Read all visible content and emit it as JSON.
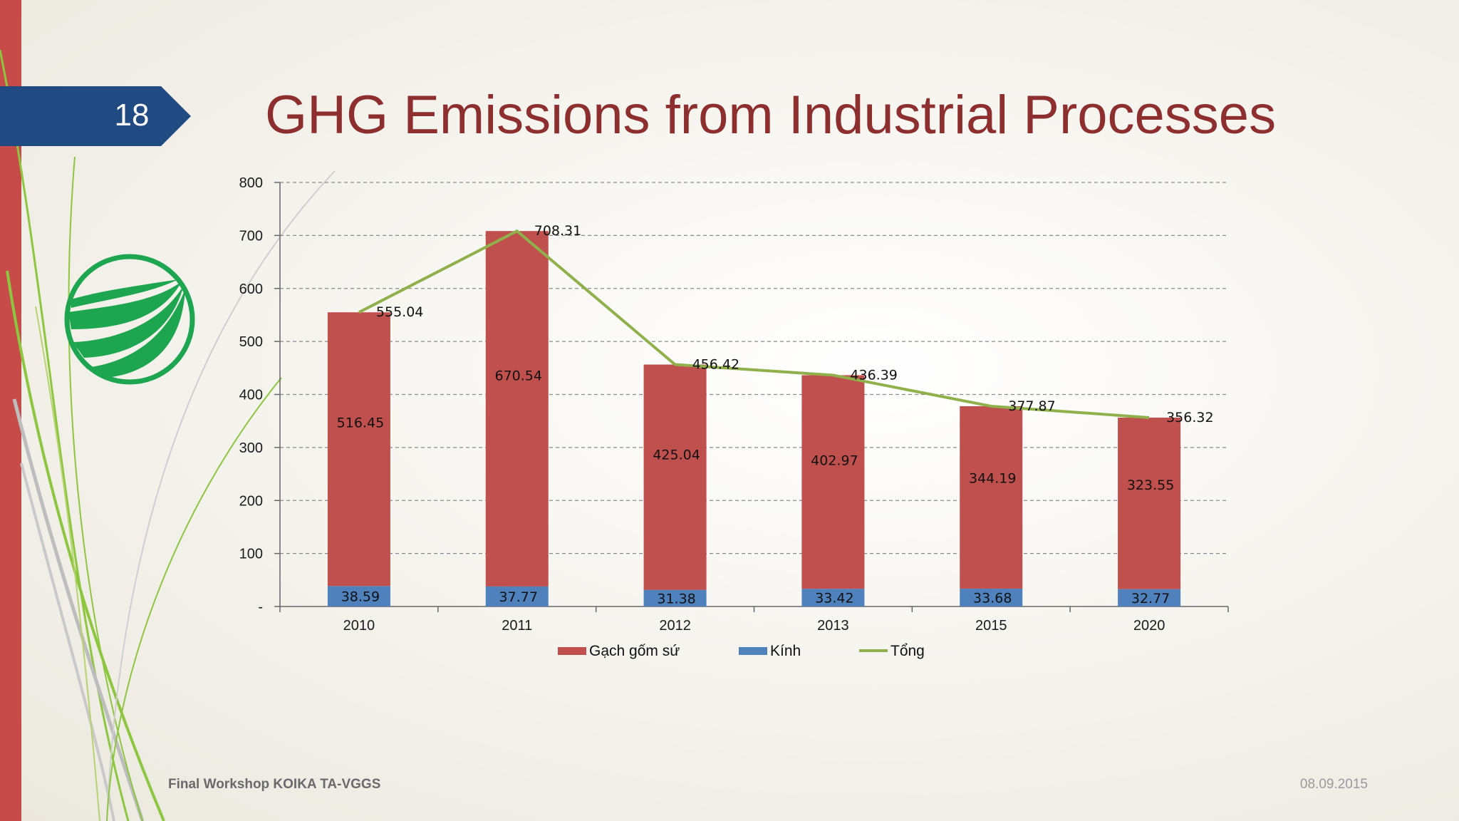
{
  "slide": {
    "number": "18",
    "title": "GHG Emissions from Industrial Processes",
    "footer_left": "Final Workshop KOIKA TA-VGGS",
    "footer_right": "08.09.2015"
  },
  "colors": {
    "accent_red": "#c74b48",
    "badge_blue": "#1f4a82",
    "title_red": "#8e2f2f",
    "series_red": "#c0504d",
    "series_blue": "#4f81bd",
    "series_green": "#8fb04a",
    "logo_green": "#1da64f"
  },
  "chart_data": {
    "type": "bar",
    "stacked": true,
    "categories": [
      "2010",
      "2011",
      "2012",
      "2013",
      "2015",
      "2020"
    ],
    "series": [
      {
        "name": "Kính",
        "kind": "bar",
        "color": "#4f81bd",
        "values": [
          38.59,
          37.77,
          31.38,
          33.42,
          33.68,
          32.77
        ]
      },
      {
        "name": "Gạch gốm sứ",
        "kind": "bar",
        "color": "#c0504d",
        "values": [
          516.45,
          670.54,
          425.04,
          402.97,
          344.19,
          323.55
        ]
      },
      {
        "name": "Tổng",
        "kind": "line",
        "color": "#8fb04a",
        "values": [
          555.04,
          708.31,
          456.42,
          436.39,
          377.87,
          356.32
        ]
      }
    ],
    "data_labels": {
      "Kính": [
        "38.59",
        "37.77",
        "31.38",
        "33.42",
        "33.68",
        "32.77"
      ],
      "Gạch gốm sứ": [
        "516.45",
        "670.54",
        "425.04",
        "402.97",
        "344.19",
        "323.55"
      ],
      "Tổng": [
        "555.04",
        "708.31",
        "456.42",
        "436.39",
        "377.87",
        "356.32"
      ]
    },
    "y_ticks": [
      "-",
      "100",
      "200",
      "300",
      "400",
      "500",
      "600",
      "700",
      "800"
    ],
    "ylim": [
      0,
      800
    ],
    "grid": true,
    "legend": [
      "Gạch gốm sứ",
      "Kính",
      "Tổng"
    ],
    "legend_position": "bottom",
    "title": "",
    "xlabel": "",
    "ylabel": ""
  }
}
